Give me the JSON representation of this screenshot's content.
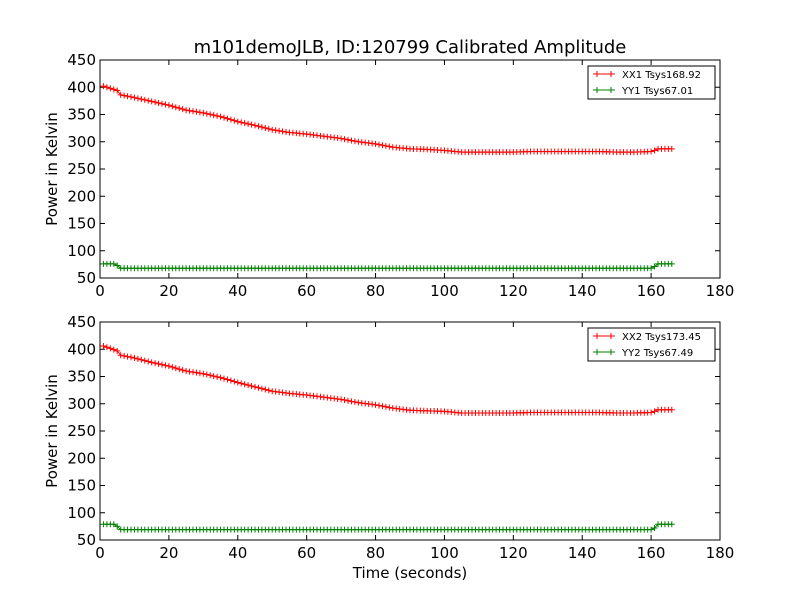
{
  "title": "m101demoJLB, ID:120799 Calibrated Amplitude",
  "xlabel": "Time (seconds)",
  "ylabel": "Power in Kelvin",
  "chart_data": [
    {
      "type": "line",
      "marker": "+",
      "xlim": [
        0,
        180
      ],
      "ylim": [
        50,
        450
      ],
      "xticks": [
        "0",
        "20",
        "40",
        "60",
        "80",
        "100",
        "120",
        "140",
        "160",
        "180"
      ],
      "yticks": [
        "50",
        "100",
        "150",
        "200",
        "250",
        "300",
        "350",
        "400",
        "450"
      ],
      "legend_position": "top-right",
      "series": [
        {
          "name": "XX1 Tsys168.92",
          "color": "#ff0000",
          "x": [
            1,
            5,
            6,
            10,
            15,
            20,
            25,
            30,
            35,
            40,
            45,
            50,
            55,
            60,
            65,
            70,
            75,
            80,
            85,
            90,
            95,
            100,
            105,
            110,
            115,
            120,
            125,
            130,
            135,
            140,
            145,
            150,
            155,
            160,
            161,
            162,
            166
          ],
          "y": [
            402,
            394,
            386,
            381,
            374,
            367,
            358,
            353,
            346,
            337,
            330,
            322,
            317,
            314,
            310,
            306,
            300,
            296,
            290,
            287,
            286,
            284,
            281,
            281,
            281,
            281,
            282,
            282,
            282,
            282,
            282,
            281,
            281,
            282,
            284,
            287,
            287
          ]
        },
        {
          "name": "YY1 Tsys67.01",
          "color": "#008000",
          "x": [
            1,
            4,
            5,
            6,
            10,
            20,
            40,
            60,
            80,
            100,
            120,
            140,
            160,
            161,
            162,
            166
          ],
          "y": [
            76,
            76,
            73,
            68,
            68,
            68,
            68,
            68,
            68,
            68,
            68,
            68,
            68,
            71,
            76,
            76
          ]
        }
      ]
    },
    {
      "type": "line",
      "marker": "+",
      "xlim": [
        0,
        180
      ],
      "ylim": [
        50,
        450
      ],
      "xticks": [
        "0",
        "20",
        "40",
        "60",
        "80",
        "100",
        "120",
        "140",
        "160",
        "180"
      ],
      "yticks": [
        "50",
        "100",
        "150",
        "200",
        "250",
        "300",
        "350",
        "400",
        "450"
      ],
      "legend_position": "top-right",
      "series": [
        {
          "name": "XX2 Tsys173.45",
          "color": "#ff0000",
          "x": [
            1,
            5,
            6,
            10,
            15,
            20,
            25,
            30,
            35,
            40,
            45,
            50,
            55,
            60,
            65,
            70,
            75,
            80,
            85,
            90,
            95,
            100,
            105,
            110,
            115,
            120,
            125,
            130,
            135,
            140,
            145,
            150,
            155,
            160,
            161,
            162,
            166
          ],
          "y": [
            406,
            397,
            389,
            384,
            376,
            369,
            360,
            355,
            348,
            339,
            331,
            323,
            319,
            316,
            312,
            308,
            302,
            298,
            292,
            288,
            287,
            286,
            283,
            283,
            283,
            283,
            284,
            284,
            284,
            284,
            284,
            283,
            283,
            284,
            286,
            289,
            289
          ]
        },
        {
          "name": "YY2 Tsys67.49",
          "color": "#008000",
          "x": [
            1,
            4,
            5,
            6,
            10,
            20,
            40,
            60,
            80,
            100,
            120,
            140,
            160,
            161,
            162,
            166
          ],
          "y": [
            79,
            79,
            75,
            69,
            69,
            69,
            69,
            69,
            69,
            69,
            69,
            69,
            69,
            72,
            79,
            79
          ]
        }
      ]
    }
  ]
}
